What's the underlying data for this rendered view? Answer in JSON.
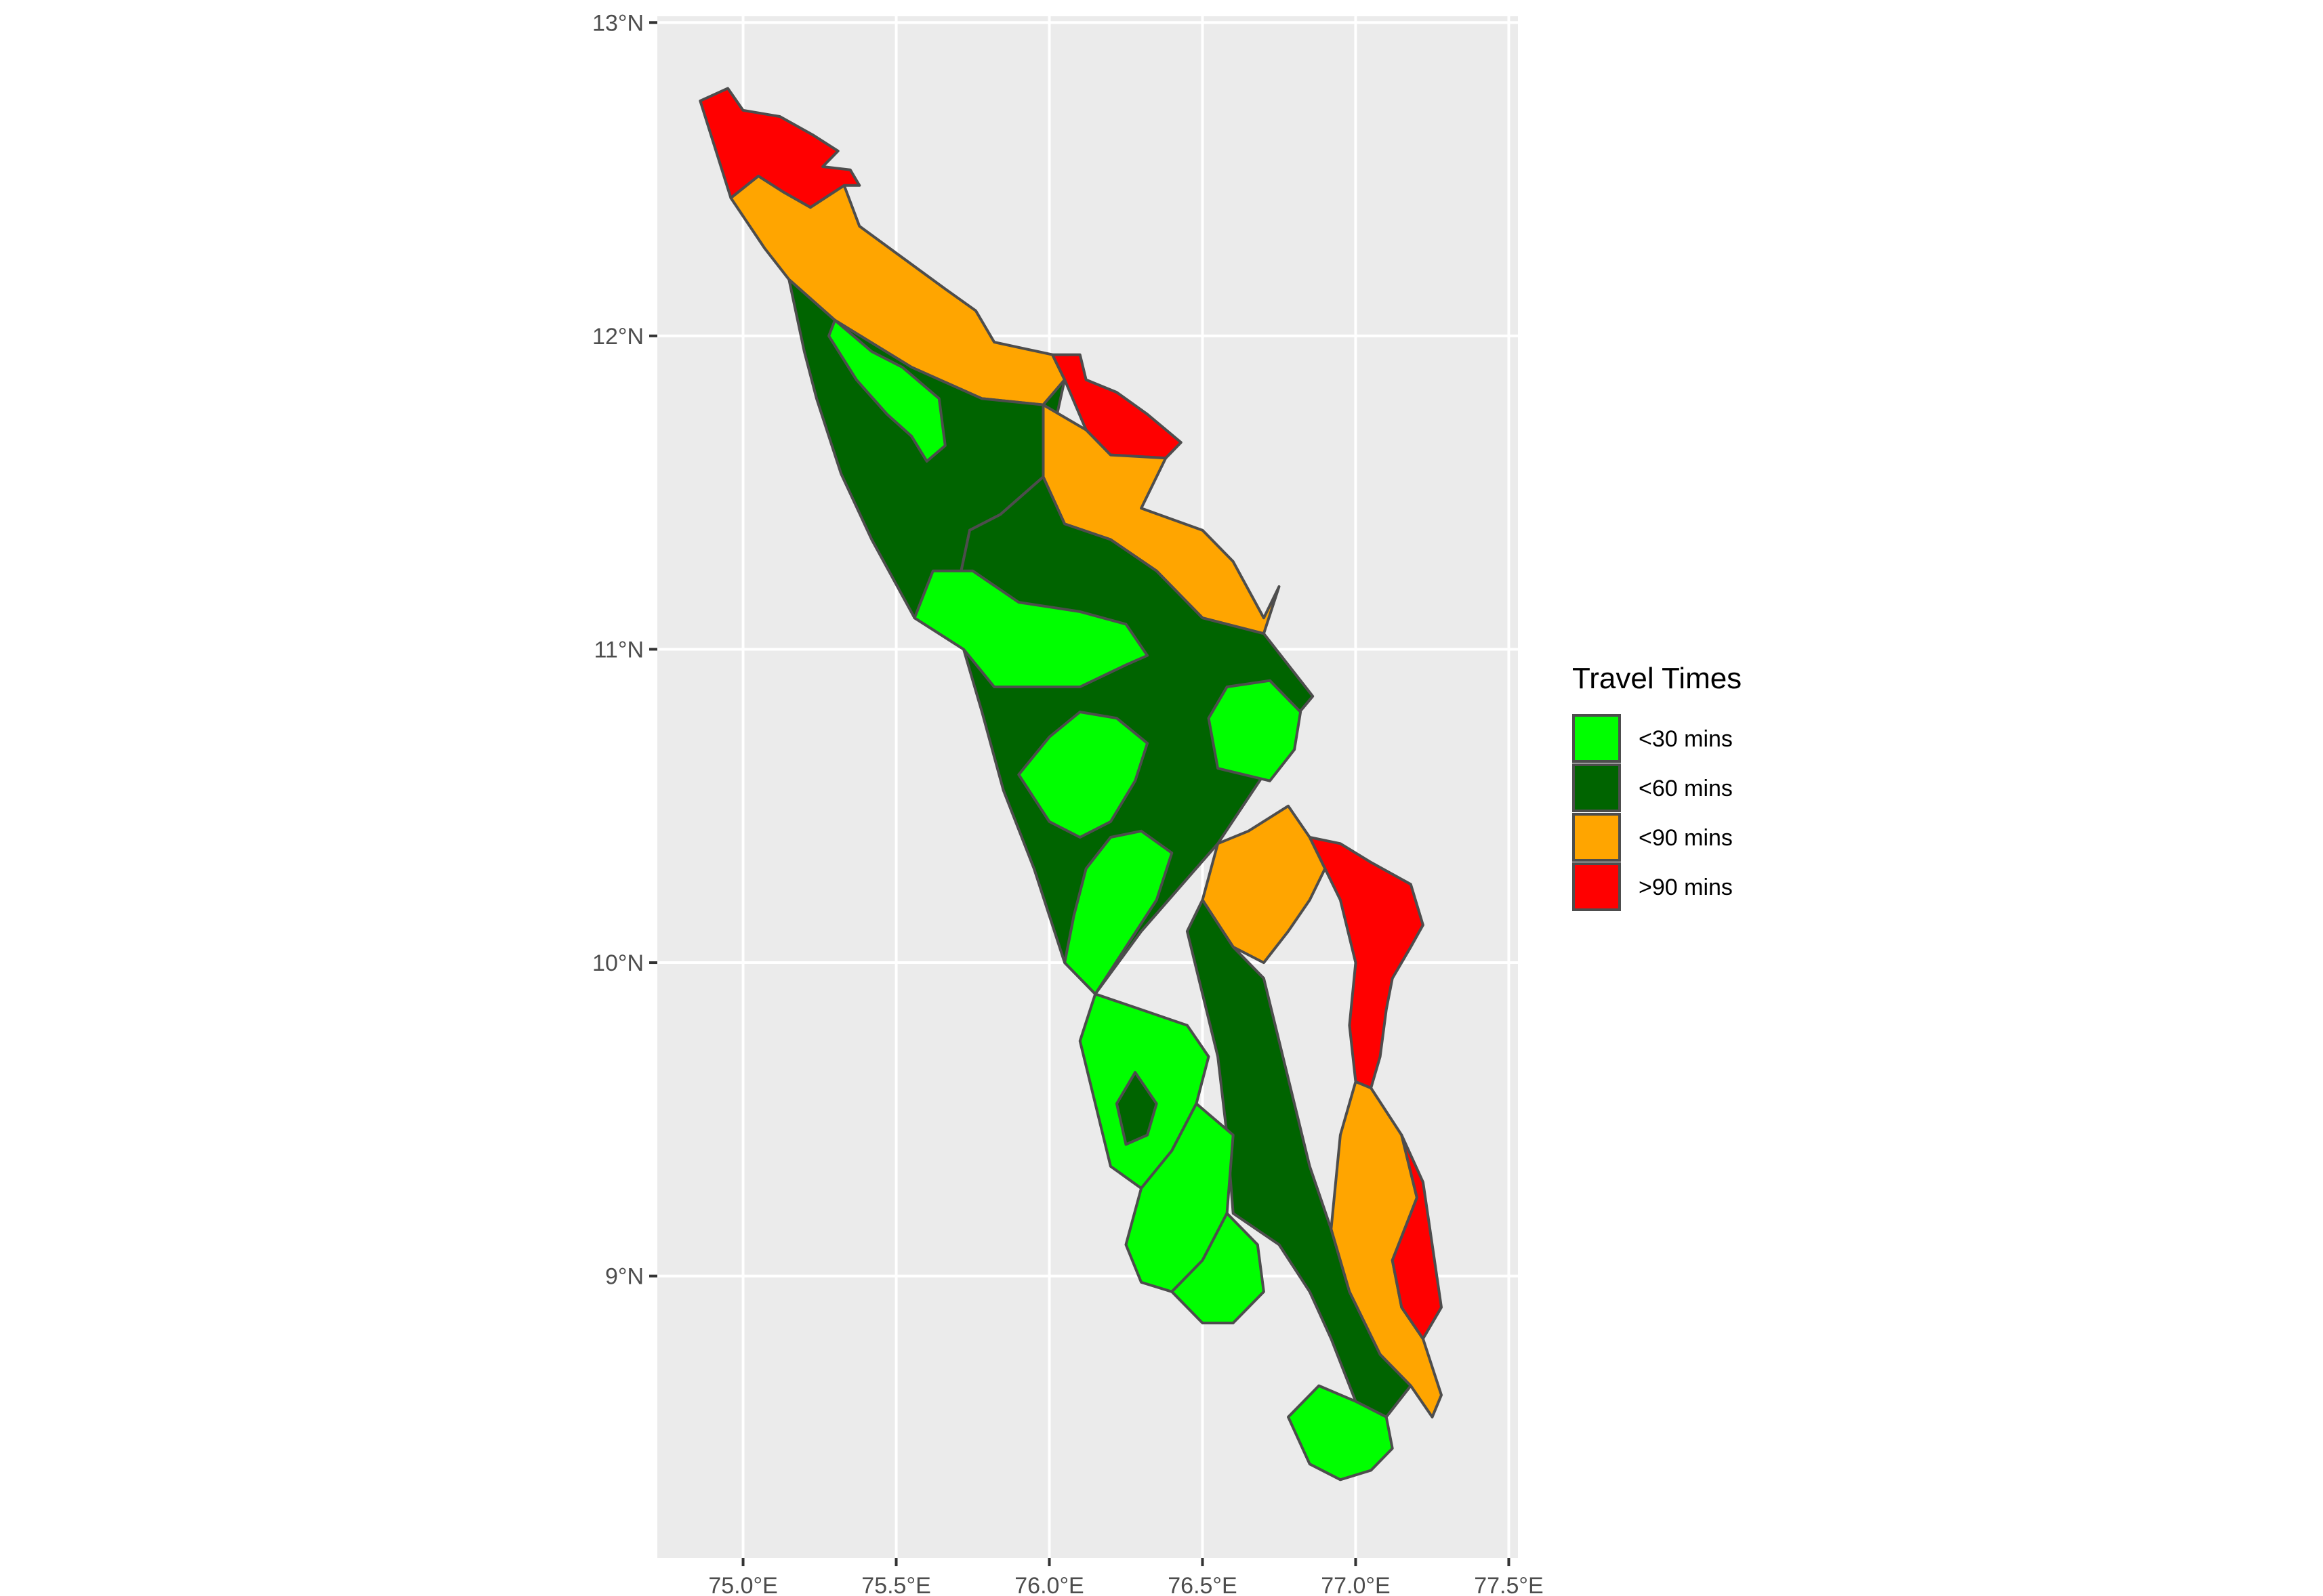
{
  "map": {
    "type": "choropleth",
    "xlim": [
      74.72,
      77.53
    ],
    "ylim": [
      8.1,
      13.02
    ],
    "x_ticks": [
      75.0,
      75.5,
      76.0,
      76.5,
      77.0,
      77.5
    ],
    "y_ticks": [
      9,
      10,
      11,
      12,
      13
    ],
    "x_tick_labels": [
      "75.0°E",
      "75.5°E",
      "76.0°E",
      "76.5°E",
      "77.0°E",
      "77.5°E"
    ],
    "y_tick_labels": [
      "9°N",
      "10°N",
      "11°N",
      "12°N",
      "13°N"
    ],
    "grid": true,
    "legend_position": "right",
    "colors": {
      "panel_background": "#ebebeb",
      "gridline": "#ffffff",
      "outline": "#4d4d4d"
    }
  },
  "legend": {
    "title": "Travel Times",
    "items": [
      {
        "label": "<30 mins",
        "color": "#00ff00"
      },
      {
        "label": "<60 mins",
        "color": "#006400"
      },
      {
        "label": "<90 mins",
        "color": "#ffa500"
      },
      {
        "label": ">90 mins",
        "color": "#ff0000"
      }
    ]
  },
  "regions": [
    {
      "category": 3,
      "coords": [
        [
          74.86,
          12.75
        ],
        [
          74.95,
          12.79
        ],
        [
          75.0,
          12.72
        ],
        [
          75.12,
          12.7
        ],
        [
          75.23,
          12.64
        ],
        [
          75.31,
          12.59
        ],
        [
          75.26,
          12.54
        ],
        [
          75.35,
          12.53
        ],
        [
          75.38,
          12.48
        ],
        [
          75.33,
          12.48
        ],
        [
          75.22,
          12.41
        ],
        [
          75.13,
          12.46
        ],
        [
          75.05,
          12.51
        ],
        [
          74.96,
          12.44
        ]
      ]
    },
    {
      "category": 2,
      "coords": [
        [
          74.96,
          12.44
        ],
        [
          75.05,
          12.51
        ],
        [
          75.13,
          12.46
        ],
        [
          75.22,
          12.41
        ],
        [
          75.33,
          12.48
        ],
        [
          75.38,
          12.35
        ],
        [
          75.52,
          12.25
        ],
        [
          75.66,
          12.15
        ],
        [
          75.76,
          12.08
        ],
        [
          75.82,
          11.98
        ],
        [
          76.01,
          11.94
        ],
        [
          76.05,
          11.86
        ],
        [
          75.98,
          11.78
        ],
        [
          75.78,
          11.8
        ],
        [
          75.55,
          11.9
        ],
        [
          75.3,
          12.05
        ],
        [
          75.15,
          12.18
        ],
        [
          75.07,
          12.28
        ]
      ]
    },
    {
      "category": 3,
      "coords": [
        [
          76.01,
          11.94
        ],
        [
          76.1,
          11.94
        ],
        [
          76.12,
          11.86
        ],
        [
          76.22,
          11.82
        ],
        [
          76.32,
          11.75
        ],
        [
          76.43,
          11.66
        ],
        [
          76.38,
          11.61
        ],
        [
          76.2,
          11.62
        ],
        [
          76.12,
          11.7
        ],
        [
          76.05,
          11.86
        ]
      ]
    },
    {
      "category": 1,
      "coords": [
        [
          75.15,
          12.18
        ],
        [
          75.3,
          12.05
        ],
        [
          75.55,
          11.9
        ],
        [
          75.78,
          11.8
        ],
        [
          75.98,
          11.78
        ],
        [
          76.05,
          11.86
        ],
        [
          75.98,
          11.55
        ],
        [
          75.84,
          11.43
        ],
        [
          75.74,
          11.38
        ],
        [
          75.68,
          11.1
        ],
        [
          75.56,
          11.1
        ],
        [
          75.42,
          11.35
        ],
        [
          75.32,
          11.56
        ],
        [
          75.24,
          11.8
        ],
        [
          75.2,
          11.95
        ]
      ]
    },
    {
      "category": 0,
      "coords": [
        [
          75.3,
          12.05
        ],
        [
          75.42,
          11.95
        ],
        [
          75.52,
          11.9
        ],
        [
          75.64,
          11.8
        ],
        [
          75.66,
          11.65
        ],
        [
          75.6,
          11.6
        ],
        [
          75.55,
          11.68
        ],
        [
          75.47,
          11.75
        ],
        [
          75.37,
          11.86
        ],
        [
          75.28,
          12.0
        ]
      ]
    },
    {
      "category": 2,
      "coords": [
        [
          75.98,
          11.78
        ],
        [
          76.12,
          11.7
        ],
        [
          76.2,
          11.62
        ],
        [
          76.38,
          11.61
        ],
        [
          76.3,
          11.45
        ],
        [
          76.5,
          11.38
        ],
        [
          76.6,
          11.28
        ],
        [
          76.7,
          11.1
        ],
        [
          76.75,
          11.2
        ],
        [
          76.7,
          11.05
        ],
        [
          76.5,
          11.1
        ],
        [
          76.35,
          11.25
        ],
        [
          76.2,
          11.35
        ],
        [
          76.05,
          11.4
        ],
        [
          75.98,
          11.55
        ]
      ]
    },
    {
      "category": 1,
      "coords": [
        [
          75.56,
          11.1
        ],
        [
          75.68,
          11.1
        ],
        [
          75.74,
          11.38
        ],
        [
          75.84,
          11.43
        ],
        [
          75.98,
          11.55
        ],
        [
          76.05,
          11.4
        ],
        [
          76.2,
          11.35
        ],
        [
          76.35,
          11.25
        ],
        [
          76.5,
          11.1
        ],
        [
          76.7,
          11.05
        ],
        [
          76.86,
          10.85
        ],
        [
          76.8,
          10.78
        ],
        [
          76.7,
          10.6
        ],
        [
          76.55,
          10.38
        ],
        [
          76.3,
          10.1
        ],
        [
          76.15,
          9.9
        ],
        [
          76.05,
          10.0
        ],
        [
          75.95,
          10.3
        ],
        [
          75.85,
          10.55
        ],
        [
          75.78,
          10.8
        ],
        [
          75.72,
          11.0
        ]
      ]
    },
    {
      "category": 0,
      "coords": [
        [
          75.56,
          11.1
        ],
        [
          75.72,
          11.0
        ],
        [
          75.82,
          10.88
        ],
        [
          75.98,
          10.88
        ],
        [
          76.1,
          10.88
        ],
        [
          76.25,
          10.95
        ],
        [
          76.32,
          10.98
        ],
        [
          76.25,
          11.08
        ],
        [
          76.1,
          11.12
        ],
        [
          75.9,
          11.15
        ],
        [
          75.75,
          11.25
        ],
        [
          75.62,
          11.25
        ]
      ]
    },
    {
      "category": 0,
      "coords": [
        [
          75.9,
          10.6
        ],
        [
          76.0,
          10.72
        ],
        [
          76.1,
          10.8
        ],
        [
          76.22,
          10.78
        ],
        [
          76.32,
          10.7
        ],
        [
          76.28,
          10.58
        ],
        [
          76.2,
          10.45
        ],
        [
          76.1,
          10.4
        ],
        [
          76.0,
          10.45
        ]
      ]
    },
    {
      "category": 0,
      "coords": [
        [
          76.55,
          10.62
        ],
        [
          76.72,
          10.58
        ],
        [
          76.8,
          10.68
        ],
        [
          76.82,
          10.8
        ],
        [
          76.72,
          10.9
        ],
        [
          76.58,
          10.88
        ],
        [
          76.52,
          10.78
        ]
      ]
    },
    {
      "category": 2,
      "coords": [
        [
          76.55,
          10.38
        ],
        [
          76.65,
          10.42
        ],
        [
          76.78,
          10.5
        ],
        [
          76.85,
          10.4
        ],
        [
          76.9,
          10.3
        ],
        [
          76.85,
          10.2
        ],
        [
          76.78,
          10.1
        ],
        [
          76.7,
          10.0
        ],
        [
          76.6,
          10.05
        ],
        [
          76.5,
          10.2
        ]
      ]
    },
    {
      "category": 3,
      "coords": [
        [
          76.85,
          10.4
        ],
        [
          76.95,
          10.38
        ],
        [
          77.05,
          10.32
        ],
        [
          77.18,
          10.25
        ],
        [
          77.22,
          10.12
        ],
        [
          77.18,
          10.05
        ],
        [
          77.12,
          9.95
        ],
        [
          77.1,
          9.85
        ],
        [
          77.08,
          9.7
        ],
        [
          77.05,
          9.6
        ],
        [
          77.0,
          9.62
        ],
        [
          76.98,
          9.8
        ],
        [
          77.0,
          10.0
        ],
        [
          76.95,
          10.2
        ]
      ]
    },
    {
      "category": 0,
      "coords": [
        [
          76.05,
          10.0
        ],
        [
          76.15,
          9.9
        ],
        [
          76.25,
          10.05
        ],
        [
          76.35,
          10.2
        ],
        [
          76.4,
          10.35
        ],
        [
          76.3,
          10.42
        ],
        [
          76.2,
          10.4
        ],
        [
          76.12,
          10.3
        ],
        [
          76.08,
          10.15
        ]
      ]
    },
    {
      "category": 0,
      "coords": [
        [
          76.15,
          9.9
        ],
        [
          76.3,
          9.85
        ],
        [
          76.45,
          9.8
        ],
        [
          76.52,
          9.7
        ],
        [
          76.48,
          9.55
        ],
        [
          76.4,
          9.4
        ],
        [
          76.3,
          9.28
        ],
        [
          76.2,
          9.35
        ],
        [
          76.15,
          9.55
        ],
        [
          76.1,
          9.75
        ]
      ]
    },
    {
      "category": 1,
      "coords": [
        [
          76.6,
          9.2
        ],
        [
          76.75,
          9.1
        ],
        [
          76.85,
          8.95
        ],
        [
          76.92,
          8.8
        ],
        [
          77.0,
          8.6
        ],
        [
          77.1,
          8.55
        ],
        [
          77.18,
          8.65
        ],
        [
          77.08,
          8.75
        ],
        [
          76.98,
          8.95
        ],
        [
          76.92,
          9.15
        ],
        [
          76.85,
          9.35
        ],
        [
          76.8,
          9.55
        ],
        [
          76.75,
          9.75
        ],
        [
          76.7,
          9.95
        ],
        [
          76.6,
          10.05
        ],
        [
          76.5,
          10.2
        ],
        [
          76.45,
          10.1
        ],
        [
          76.5,
          9.9
        ],
        [
          76.55,
          9.7
        ],
        [
          76.58,
          9.45
        ]
      ]
    },
    {
      "category": 2,
      "coords": [
        [
          76.92,
          9.15
        ],
        [
          76.98,
          8.95
        ],
        [
          77.08,
          8.75
        ],
        [
          77.18,
          8.65
        ],
        [
          77.25,
          8.55
        ],
        [
          77.28,
          8.62
        ],
        [
          77.22,
          8.8
        ],
        [
          77.15,
          8.9
        ],
        [
          77.12,
          9.05
        ],
        [
          77.2,
          9.25
        ],
        [
          77.15,
          9.45
        ],
        [
          77.05,
          9.6
        ],
        [
          77.0,
          9.62
        ],
        [
          76.95,
          9.45
        ]
      ]
    },
    {
      "category": 3,
      "coords": [
        [
          77.12,
          9.05
        ],
        [
          77.15,
          8.9
        ],
        [
          77.22,
          8.8
        ],
        [
          77.28,
          8.9
        ],
        [
          77.25,
          9.1
        ],
        [
          77.22,
          9.3
        ],
        [
          77.15,
          9.45
        ],
        [
          77.2,
          9.25
        ]
      ]
    },
    {
      "category": 0,
      "coords": [
        [
          76.3,
          9.28
        ],
        [
          76.4,
          9.4
        ],
        [
          76.48,
          9.55
        ],
        [
          76.6,
          9.45
        ],
        [
          76.58,
          9.2
        ],
        [
          76.5,
          9.05
        ],
        [
          76.4,
          8.95
        ],
        [
          76.3,
          8.98
        ],
        [
          76.25,
          9.1
        ]
      ]
    },
    {
      "category": 0,
      "coords": [
        [
          76.4,
          8.95
        ],
        [
          76.5,
          9.05
        ],
        [
          76.58,
          9.2
        ],
        [
          76.68,
          9.1
        ],
        [
          76.7,
          8.95
        ],
        [
          76.6,
          8.85
        ],
        [
          76.5,
          8.85
        ]
      ]
    },
    {
      "category": 0,
      "coords": [
        [
          76.78,
          8.55
        ],
        [
          76.88,
          8.65
        ],
        [
          77.0,
          8.6
        ],
        [
          77.1,
          8.55
        ],
        [
          77.12,
          8.45
        ],
        [
          77.05,
          8.38
        ],
        [
          76.95,
          8.35
        ],
        [
          76.85,
          8.4
        ]
      ]
    },
    {
      "category": 1,
      "coords": [
        [
          76.22,
          9.55
        ],
        [
          76.28,
          9.65
        ],
        [
          76.35,
          9.55
        ],
        [
          76.32,
          9.45
        ],
        [
          76.25,
          9.42
        ]
      ]
    }
  ]
}
